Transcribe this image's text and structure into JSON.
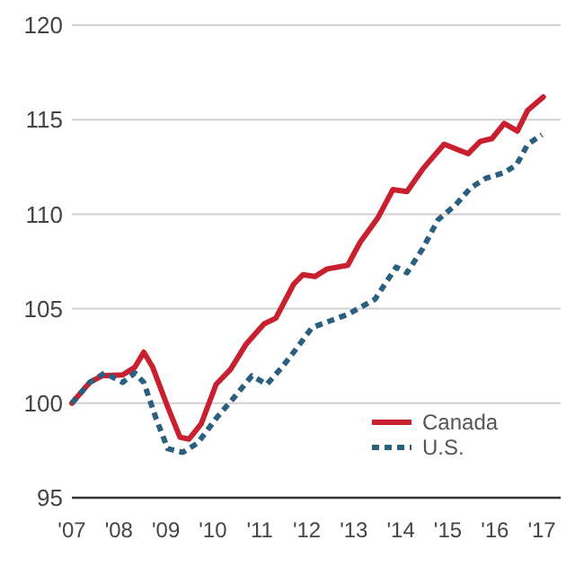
{
  "chart_data": {
    "type": "line",
    "x": [
      2007,
      2007.38,
      2007.64,
      2008.08,
      2008.34,
      2008.53,
      2008.72,
      2009.04,
      2009.3,
      2009.49,
      2009.75,
      2010.07,
      2010.38,
      2010.7,
      2011.09,
      2011.34,
      2011.72,
      2011.92,
      2012.17,
      2012.43,
      2012.87,
      2013.13,
      2013.51,
      2013.83,
      2014.13,
      2014.47,
      2014.92,
      2015.43,
      2015.69,
      2015.94,
      2016.2,
      2016.48,
      2016.7,
      2017.03
    ],
    "series": [
      {
        "name": "Canada",
        "color": "#c8202f",
        "line_style": "solid",
        "values": [
          100,
          101.1,
          101.45,
          101.5,
          101.9,
          102.7,
          101.9,
          99.8,
          98.2,
          98.1,
          98.9,
          101,
          101.8,
          103.1,
          104.2,
          104.5,
          106.3,
          106.8,
          106.7,
          107.1,
          107.3,
          108.5,
          109.8,
          111.3,
          111.2,
          112.4,
          113.7,
          113.2,
          113.85,
          114,
          114.8,
          114.4,
          115.5,
          116.2
        ]
      },
      {
        "name": "U.S.",
        "color": "#2b5f7f",
        "line_style": "dashed",
        "x": [
          2007,
          2007.38,
          2007.7,
          2008.08,
          2008.34,
          2008.53,
          2008.79,
          2009.04,
          2009.36,
          2009.68,
          2010.07,
          2010.45,
          2010.83,
          2011.15,
          2011.47,
          2011.72,
          2012.11,
          2012.49,
          2012.87,
          2013.2,
          2013.45,
          2013.9,
          2014.13,
          2014.47,
          2014.79,
          2015.17,
          2015.49,
          2015.81,
          2016.2,
          2016.46,
          2016.7,
          2017
        ],
        "values": [
          100,
          101.1,
          101.6,
          101.1,
          101.6,
          101.1,
          99.2,
          97.6,
          97.4,
          97.9,
          99.2,
          100.3,
          101.45,
          101,
          101.9,
          102.7,
          104,
          104.35,
          104.7,
          105.15,
          105.5,
          107.2,
          106.9,
          108.2,
          109.7,
          110.5,
          111.4,
          111.9,
          112.2,
          112.6,
          113.7,
          114.2
        ]
      }
    ],
    "xlim": [
      2007,
      2017.4
    ],
    "xticks": [
      {
        "value": 2007,
        "label": "'07"
      },
      {
        "value": 2008,
        "label": "'08"
      },
      {
        "value": 2009,
        "label": "'09"
      },
      {
        "value": 2010,
        "label": "'10"
      },
      {
        "value": 2011,
        "label": "'11"
      },
      {
        "value": 2012,
        "label": "'12"
      },
      {
        "value": 2013,
        "label": "'13"
      },
      {
        "value": 2014,
        "label": "'14"
      },
      {
        "value": 2015,
        "label": "'15"
      },
      {
        "value": 2016,
        "label": "'16"
      },
      {
        "value": 2017,
        "label": "'17"
      }
    ],
    "ylim": [
      95,
      120
    ],
    "yticks": [
      95,
      100,
      105,
      110,
      115,
      120
    ],
    "grid": "y",
    "legend": "bottom right"
  }
}
